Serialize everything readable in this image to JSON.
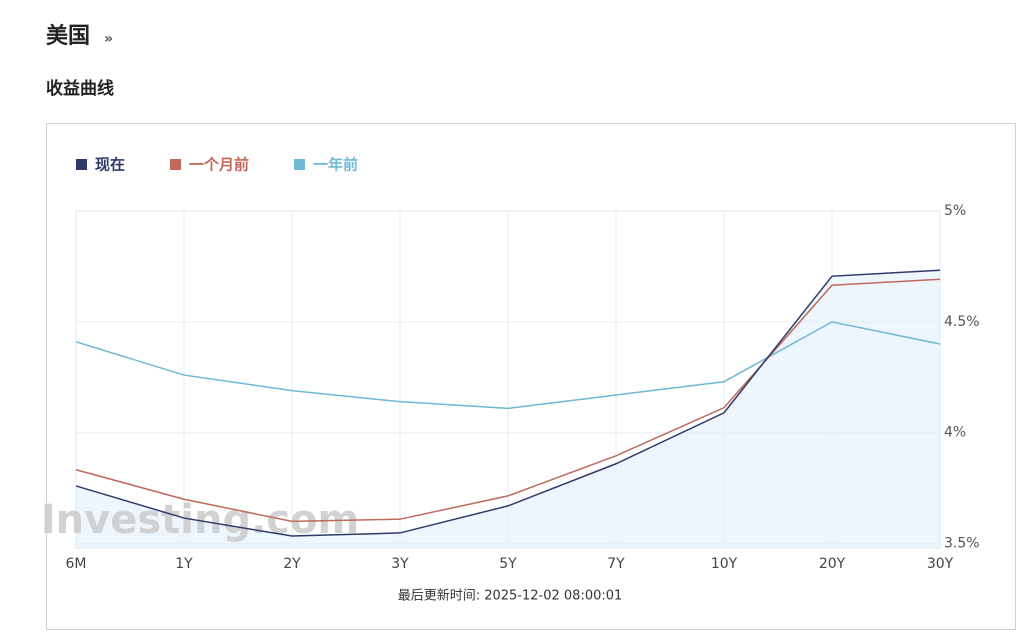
{
  "heading": "美国",
  "heading_link": "»",
  "chart_data": {
    "type": "line",
    "title": "收益曲线",
    "categories": [
      "6M",
      "1Y",
      "2Y",
      "3Y",
      "5Y",
      "7Y",
      "10Y",
      "20Y",
      "30Y"
    ],
    "series": [
      {
        "name": "现在",
        "color": "#2f3a6b",
        "fill": "#eef6fd",
        "values": [
          3.76,
          3.615,
          3.534,
          3.548,
          3.67,
          3.86,
          4.09,
          4.706,
          4.733
        ]
      },
      {
        "name": "一个月前",
        "color": "#c0695a",
        "values": [
          3.833,
          3.7,
          3.6,
          3.61,
          3.715,
          3.896,
          4.113,
          4.665,
          4.692
        ]
      },
      {
        "name": "一年前",
        "color": "#6fb8d6",
        "values": [
          4.41,
          4.26,
          4.19,
          4.14,
          4.11,
          4.17,
          4.23,
          4.5,
          4.4
        ]
      }
    ],
    "ylim": [
      3.48,
      5
    ],
    "yticks": [
      {
        "value": 5,
        "label": "5%"
      },
      {
        "value": 4.5,
        "label": "4.5%"
      },
      {
        "value": 4,
        "label": "4%"
      },
      {
        "value": 3.5,
        "label": "3.5%"
      }
    ],
    "grid": true,
    "legend": "top-left",
    "watermark": "Investing.com",
    "footer": "最后更新时间: 2025-12-02 08:00:01"
  }
}
